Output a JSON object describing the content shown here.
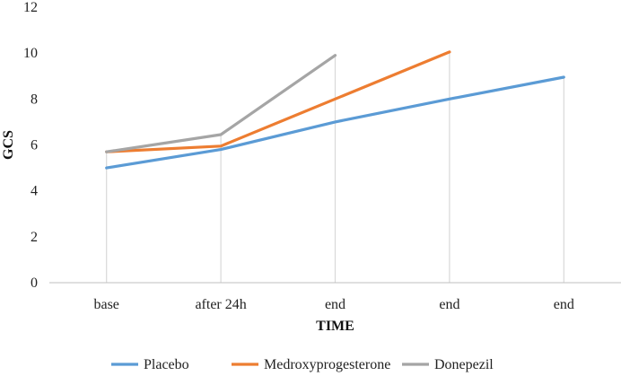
{
  "chart_data": {
    "type": "line",
    "title": "",
    "xlabel": "TIME",
    "ylabel": "GCS",
    "categories": [
      "base",
      "after 24h",
      "end",
      "end",
      "end"
    ],
    "ylim": [
      0,
      12
    ],
    "yticks": [
      0,
      2,
      4,
      6,
      8,
      10,
      12
    ],
    "grid": "vertical drop lines at each category",
    "legend_position": "bottom",
    "series": [
      {
        "name": "Placebo",
        "color": "#5b9bd5",
        "values": [
          5.0,
          5.8,
          7.0,
          8.0,
          8.95
        ]
      },
      {
        "name": "Medroxyprogesterone",
        "color": "#ed7d31",
        "values": [
          5.7,
          5.95,
          8.0,
          10.05,
          null
        ]
      },
      {
        "name": "Donepezil",
        "color": "#a5a5a5",
        "values": [
          5.7,
          6.45,
          9.9,
          null,
          null
        ]
      }
    ]
  }
}
